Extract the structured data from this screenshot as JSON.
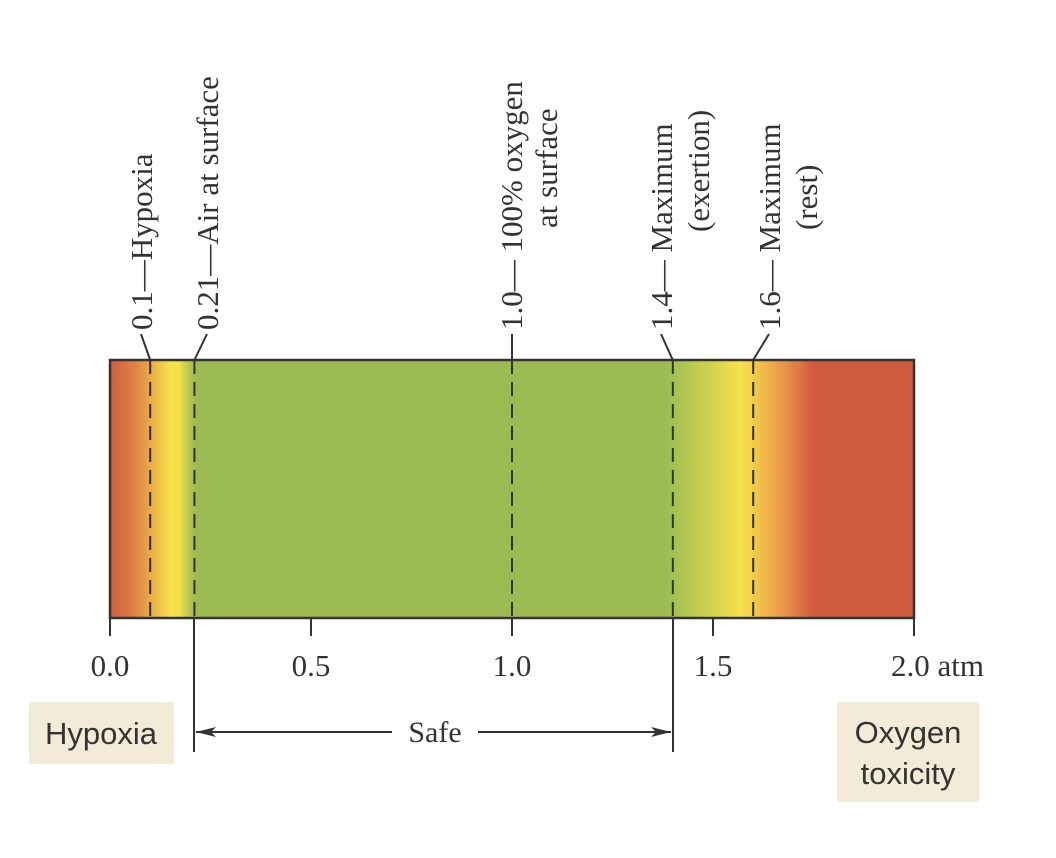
{
  "colors": {
    "hypoxia_red": "#d05a3e",
    "caution_yellow": "#f7e24a",
    "safe_green": "#9bbb52",
    "label_box": "#f3ead8",
    "line": "#333333"
  },
  "scale": {
    "min": 0.0,
    "max": 2.0,
    "unit": "atm",
    "ticks": [
      "0.0",
      "0.5",
      "1.0",
      "1.5",
      "2.0 atm"
    ]
  },
  "markers": [
    {
      "value": 0.1,
      "label_line1": "0.1—Hypoxia",
      "label_line2": ""
    },
    {
      "value": 0.21,
      "label_line1": "0.21—Air at surface",
      "label_line2": ""
    },
    {
      "value": 1.0,
      "label_line1": "1.0— 100% oxygen",
      "label_line2": "at surface"
    },
    {
      "value": 1.4,
      "label_line1": "1.4— Maximum",
      "label_line2": "(exertion)"
    },
    {
      "value": 1.6,
      "label_line1": "1.6— Maximum",
      "label_line2": "(rest)"
    }
  ],
  "safe_range": {
    "label": "Safe",
    "from": 0.21,
    "to": 1.4
  },
  "zones": {
    "left_label": "Hypoxia",
    "right_label_line1": "Oxygen",
    "right_label_line2": "toxicity"
  }
}
